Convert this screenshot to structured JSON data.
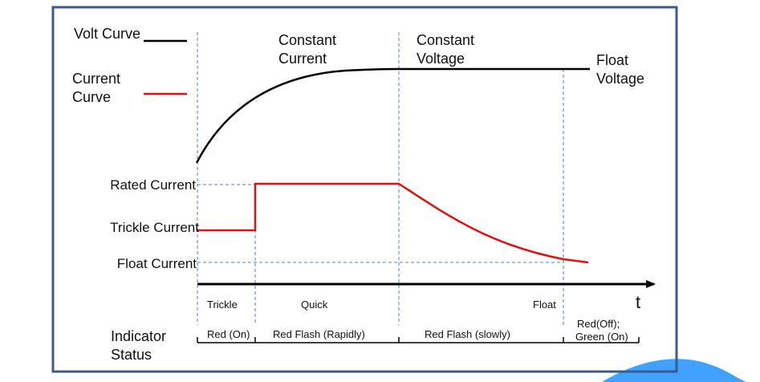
{
  "legend": {
    "volt_curve": "Volt Curve",
    "current_curve_line1": "Current",
    "current_curve_line2": "Curve"
  },
  "phases": {
    "constant_current_line1": "Constant",
    "constant_current_line2": "Current",
    "constant_voltage_line1": "Constant",
    "constant_voltage_line2": "Voltage",
    "float_voltage_line1": "Float",
    "float_voltage_line2": "Voltage"
  },
  "current_levels": {
    "rated": "Rated  Current",
    "trickle": "Trickle  Current",
    "float": "Float  Current"
  },
  "time_axis": {
    "label": "t"
  },
  "stages": {
    "trickle": "Trickle",
    "quick": "Quick",
    "float": "Float"
  },
  "indicator": {
    "title_line1": "Indicator",
    "title_line2": "Status",
    "red_on": "Red (On)",
    "red_flash_rapidly": "Red Flash (Rapidly)",
    "red_flash_slowly": "Red Flash (slowly)",
    "red_off": "Red(Off);",
    "green_on": "Green (On)"
  },
  "colors": {
    "frame": "#3d5a8a",
    "volt_curve": "#000000",
    "current_curve": "#e01010",
    "guide_lines": "#5b7fb0",
    "watermark": "#1e90ff"
  }
}
